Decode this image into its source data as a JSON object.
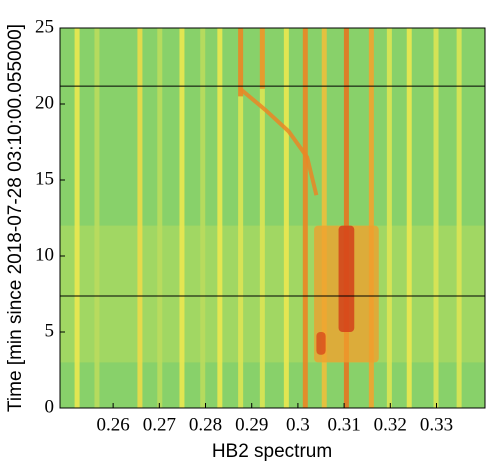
{
  "chart_data": {
    "type": "heatmap",
    "xlabel": "HB2 spectrum",
    "ylabel": "Time [min since 2018-07-28 03:10:00.055000]",
    "xlim": [
      0.2485,
      0.3405
    ],
    "ylim": [
      0,
      25
    ],
    "xticks": [
      0.26,
      0.27,
      0.28,
      0.29,
      0.3,
      0.31,
      0.32,
      0.33
    ],
    "yticks": [
      0,
      5,
      10,
      15,
      20,
      25
    ],
    "base": 0.05,
    "bands": [
      {
        "from": 3,
        "to": 12,
        "level": 0.18
      }
    ],
    "streaks": [
      {
        "x": 0.2522,
        "from": 0,
        "to": 25,
        "level": 0.35
      },
      {
        "x": 0.2565,
        "from": 0,
        "to": 25,
        "level": 0.2
      },
      {
        "x": 0.2658,
        "from": 0,
        "to": 25,
        "level": 0.4
      },
      {
        "x": 0.2701,
        "from": 0,
        "to": 25,
        "level": 0.2
      },
      {
        "x": 0.2749,
        "from": 0,
        "to": 25,
        "level": 0.35
      },
      {
        "x": 0.2794,
        "from": 0,
        "to": 25,
        "level": 0.2
      },
      {
        "x": 0.2831,
        "from": 0,
        "to": 25,
        "level": 0.35
      },
      {
        "x": 0.2876,
        "from": 20.5,
        "to": 25,
        "level": 0.7
      },
      {
        "x": 0.2876,
        "from": 0,
        "to": 20.5,
        "level": 0.3
      },
      {
        "x": 0.2923,
        "from": 21,
        "to": 25,
        "level": 0.65
      },
      {
        "x": 0.2923,
        "from": 0,
        "to": 21,
        "level": 0.3
      },
      {
        "x": 0.2975,
        "from": 0,
        "to": 25,
        "level": 0.35
      },
      {
        "x": 0.3016,
        "from": 0,
        "to": 25,
        "level": 0.7
      },
      {
        "x": 0.3057,
        "from": 0,
        "to": 25,
        "level": 0.5
      },
      {
        "x": 0.3105,
        "from": 0,
        "to": 25,
        "level": 0.75
      },
      {
        "x": 0.3159,
        "from": 0,
        "to": 25,
        "level": 0.6
      },
      {
        "x": 0.3198,
        "from": 0,
        "to": 25,
        "level": 0.3
      },
      {
        "x": 0.3241,
        "from": 0,
        "to": 25,
        "level": 0.35
      },
      {
        "x": 0.3299,
        "from": 0,
        "to": 25,
        "level": 0.3
      },
      {
        "x": 0.3349,
        "from": 0,
        "to": 25,
        "level": 0.3
      }
    ],
    "hotspots": [
      {
        "x0": 0.3035,
        "x1": 0.3175,
        "from": 3,
        "to": 12,
        "level": 0.62
      },
      {
        "x0": 0.3088,
        "x1": 0.3122,
        "from": 5,
        "to": 12,
        "level": 0.95
      },
      {
        "x0": 0.304,
        "x1": 0.306,
        "from": 3.5,
        "to": 5,
        "level": 0.9
      }
    ],
    "drift": {
      "x": [
        0.2875,
        0.293,
        0.298,
        0.302,
        0.304
      ],
      "y": [
        21,
        19.6,
        18.2,
        16.5,
        14
      ],
      "level": 0.7
    },
    "hlines": [
      7.37,
      21.18
    ]
  }
}
